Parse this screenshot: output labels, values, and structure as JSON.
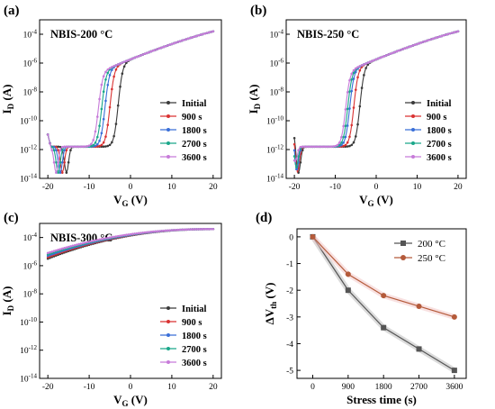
{
  "colors": {
    "Initial": "#3a3a3a",
    "900 s": "#d93232",
    "1800 s": "#3a6fd8",
    "2700 s": "#1aa78a",
    "3600 s": "#c77bd9",
    "200 °C": "#555555",
    "250 °C": "#b45a3a",
    "band200": "#bdbdbd",
    "band250": "#f3c8c8"
  },
  "chart_data": [
    {
      "panel": "(a)",
      "type": "line",
      "title": "NBIS-200 °C",
      "xlabel": "V_G (V)",
      "ylabel": "I_D (A)",
      "xlim": [
        -22,
        22
      ],
      "ylim_log10": [
        -14,
        -3
      ],
      "xticks": [
        "-20",
        "-10",
        "0",
        "10",
        "20"
      ],
      "yticks": [
        "10^-14",
        "10^-12",
        "10^-10",
        "10^-8",
        "10^-6",
        "10^-4"
      ],
      "y_scale": "log",
      "legend": "right",
      "curve_model": "transfer",
      "series": [
        {
          "name": "Initial",
          "vth": -3.0,
          "dip_x": -15.5
        },
        {
          "name": "900 s",
          "vth": -5.0,
          "dip_x": -16.5
        },
        {
          "name": "1800 s",
          "vth": -6.2,
          "dip_x": -17.0
        },
        {
          "name": "2700 s",
          "vth": -7.0,
          "dip_x": -17.5
        },
        {
          "name": "3600 s",
          "vth": -7.8,
          "dip_x": -18.0
        }
      ]
    },
    {
      "panel": "(b)",
      "type": "line",
      "title": "NBIS-250 °C",
      "xlabel": "V_G (V)",
      "ylabel": "I_D (A)",
      "xlim": [
        -22,
        22
      ],
      "ylim_log10": [
        -14,
        -3
      ],
      "xticks": [
        "-20",
        "-10",
        "0",
        "10",
        "20"
      ],
      "yticks": [
        "10^-14",
        "10^-12",
        "10^-10",
        "10^-8",
        "10^-6",
        "10^-4"
      ],
      "y_scale": "log",
      "legend": "right",
      "curve_model": "transfer",
      "series": [
        {
          "name": "Initial",
          "vth": -4.0,
          "dip_x": -19.0
        },
        {
          "name": "900 s",
          "vth": -5.5,
          "dip_x": -19.3
        },
        {
          "name": "1800 s",
          "vth": -6.5,
          "dip_x": -19.5
        },
        {
          "name": "2700 s",
          "vth": -7.0,
          "dip_x": -19.7
        },
        {
          "name": "3600 s",
          "vth": -7.5,
          "dip_x": -20.0
        }
      ]
    },
    {
      "panel": "(c)",
      "type": "line",
      "title": "NBIS-300 °C",
      "xlabel": "V_G (V)",
      "ylabel": "I_D (A)",
      "xlim": [
        -22,
        22
      ],
      "ylim_log10": [
        -14,
        -3
      ],
      "xticks": [
        "-20",
        "-10",
        "0",
        "10",
        "20"
      ],
      "yticks": [
        "10^-14",
        "10^-12",
        "10^-10",
        "10^-8",
        "10^-6",
        "10^-4"
      ],
      "y_scale": "log",
      "legend": "right",
      "curve_model": "conductive",
      "series": [
        {
          "name": "Initial",
          "start_log": -5.5
        },
        {
          "name": "900 s",
          "start_log": -5.4
        },
        {
          "name": "1800 s",
          "start_log": -5.3
        },
        {
          "name": "2700 s",
          "start_log": -5.2
        },
        {
          "name": "3600 s",
          "start_log": -5.1
        }
      ]
    },
    {
      "panel": "(d)",
      "type": "line",
      "title": "",
      "xlabel": "Stress time (s)",
      "ylabel": "ΔV_th (V)",
      "categories": [
        "0",
        "900",
        "1800",
        "2700",
        "3600"
      ],
      "x": [
        0,
        900,
        1800,
        2700,
        3600
      ],
      "xlim": [
        -400,
        3900
      ],
      "ylim": [
        -5.3,
        0.3
      ],
      "yticks": [
        "0",
        "-1",
        "-2",
        "-3",
        "-4",
        "-5"
      ],
      "legend": "top-right",
      "series": [
        {
          "name": "200 °C",
          "values": [
            0,
            -2.0,
            -3.4,
            -4.2,
            -5.0
          ],
          "marker": "square"
        },
        {
          "name": "250 °C",
          "values": [
            0,
            -1.4,
            -2.2,
            -2.6,
            -3.0
          ],
          "marker": "circle"
        }
      ]
    }
  ],
  "panel_labels": [
    "(a)",
    "(b)",
    "(c)",
    "(d)"
  ]
}
